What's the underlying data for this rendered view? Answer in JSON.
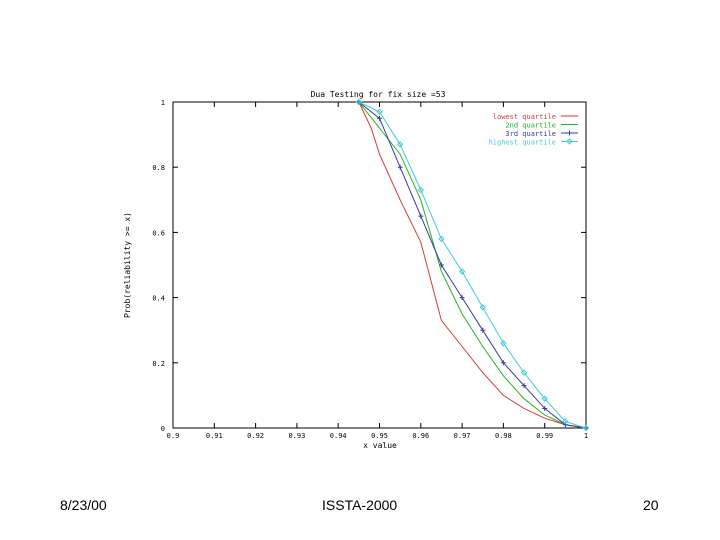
{
  "footer": {
    "date": "8/23/00",
    "conference": "ISSTA-2000",
    "page": "20"
  },
  "chart_data": {
    "type": "line",
    "title": "Dua Testing for fix size =53",
    "xlabel": "x value",
    "ylabel": "Prob(reliability >= x)",
    "xlim": [
      0.9,
      1.0
    ],
    "ylim": [
      0,
      1
    ],
    "xticks": [
      0.9,
      0.91,
      0.92,
      0.93,
      0.94,
      0.95,
      0.96,
      0.97,
      0.98,
      0.99,
      1
    ],
    "xtick_labels": [
      "0.9",
      "0.91",
      "0.92",
      "0.93",
      "0.94",
      "0.95",
      "0.96",
      "0.97",
      "0.98",
      "0.99",
      "1"
    ],
    "yticks": [
      0,
      0.2,
      0.4,
      0.6,
      0.8,
      1
    ],
    "ytick_labels": [
      "0",
      "0.2",
      "0.4",
      "0.6",
      "0.8",
      "1"
    ],
    "grid": false,
    "legend_position": "top-right",
    "series": [
      {
        "name": "lowest quartile",
        "color": "#d43a3a",
        "marker": "none",
        "x": [
          0.945,
          0.948,
          0.95,
          0.955,
          0.96,
          0.965,
          0.97,
          0.975,
          0.98,
          0.985,
          0.99,
          0.995,
          1.0
        ],
        "y": [
          1.0,
          0.92,
          0.84,
          0.7,
          0.57,
          0.33,
          0.25,
          0.17,
          0.1,
          0.06,
          0.03,
          0.01,
          0.0
        ]
      },
      {
        "name": "2nd quartile",
        "color": "#1fb51f",
        "marker": "none",
        "x": [
          0.945,
          0.95,
          0.955,
          0.96,
          0.965,
          0.97,
          0.975,
          0.98,
          0.985,
          0.99,
          0.995,
          1.0
        ],
        "y": [
          1.0,
          0.92,
          0.84,
          0.7,
          0.48,
          0.35,
          0.25,
          0.16,
          0.09,
          0.04,
          0.01,
          0.0
        ]
      },
      {
        "name": "3rd quartile",
        "color": "#3a3a9a",
        "marker": "plus",
        "x": [
          0.945,
          0.95,
          0.955,
          0.96,
          0.965,
          0.97,
          0.975,
          0.98,
          0.985,
          0.99,
          0.995,
          1.0
        ],
        "y": [
          1.0,
          0.95,
          0.8,
          0.65,
          0.5,
          0.4,
          0.3,
          0.2,
          0.13,
          0.06,
          0.01,
          0.0
        ]
      },
      {
        "name": "highest quartile",
        "color": "#3ecdd8",
        "marker": "diamond",
        "x": [
          0.945,
          0.95,
          0.955,
          0.96,
          0.965,
          0.97,
          0.975,
          0.98,
          0.985,
          0.99,
          0.995,
          1.0
        ],
        "y": [
          1.0,
          0.97,
          0.87,
          0.73,
          0.58,
          0.48,
          0.37,
          0.26,
          0.17,
          0.09,
          0.02,
          0.0
        ]
      }
    ]
  }
}
